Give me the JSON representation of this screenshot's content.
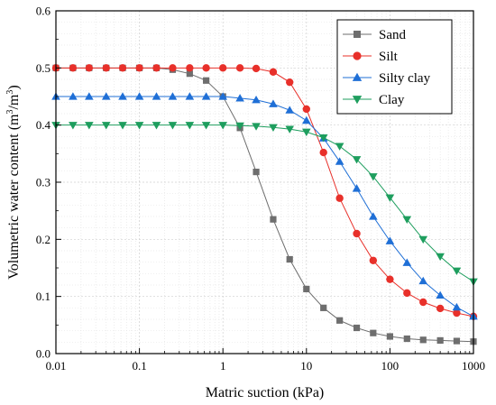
{
  "chart_data": {
    "type": "line",
    "xlabel": "Matric suction (kPa)",
    "ylabel_main": "Volumetric water content (m",
    "ylabel_sup1": "3",
    "ylabel_mid": "/m",
    "ylabel_sup2": "3",
    "ylabel_end": ")",
    "xscale": "log",
    "xlim": [
      0.01,
      1000
    ],
    "ylim": [
      0.0,
      0.6
    ],
    "xticks": [
      0.01,
      0.1,
      1,
      10,
      100,
      1000
    ],
    "xtick_labels": [
      "0.01",
      "0.1",
      "1",
      "10",
      "100",
      "1000"
    ],
    "yticks": [
      0.0,
      0.1,
      0.2,
      0.3,
      0.4,
      0.5,
      0.6
    ],
    "ytick_labels": [
      "0.0",
      "0.1",
      "0.2",
      "0.3",
      "0.4",
      "0.5",
      "0.6"
    ],
    "grid": true,
    "legend_position": "top-right",
    "series": [
      {
        "name": "Sand",
        "color": "#6e6e6e",
        "marker": "square",
        "x": [
          0.01,
          0.016,
          0.025,
          0.04,
          0.063,
          0.1,
          0.16,
          0.25,
          0.4,
          0.63,
          1,
          1.6,
          2.5,
          4,
          6.3,
          10,
          16,
          25,
          40,
          63,
          100,
          160,
          250,
          400,
          630,
          1000
        ],
        "y": [
          0.5,
          0.5,
          0.5,
          0.5,
          0.5,
          0.5,
          0.5,
          0.497,
          0.49,
          0.478,
          0.45,
          0.395,
          0.318,
          0.235,
          0.165,
          0.113,
          0.08,
          0.058,
          0.045,
          0.036,
          0.03,
          0.026,
          0.024,
          0.023,
          0.022,
          0.021
        ]
      },
      {
        "name": "Silt",
        "color": "#e8302a",
        "marker": "circle",
        "x": [
          0.01,
          0.016,
          0.025,
          0.04,
          0.063,
          0.1,
          0.16,
          0.25,
          0.4,
          0.63,
          1,
          1.6,
          2.5,
          4,
          6.3,
          10,
          16,
          25,
          40,
          63,
          100,
          160,
          250,
          400,
          630,
          1000
        ],
        "y": [
          0.5,
          0.5,
          0.5,
          0.5,
          0.5,
          0.5,
          0.5,
          0.5,
          0.5,
          0.5,
          0.5,
          0.5,
          0.499,
          0.493,
          0.475,
          0.428,
          0.352,
          0.272,
          0.21,
          0.163,
          0.13,
          0.106,
          0.09,
          0.079,
          0.071,
          0.065
        ]
      },
      {
        "name": "Silty clay",
        "color": "#1f6fd6",
        "marker": "triangle-up",
        "x": [
          0.01,
          0.016,
          0.025,
          0.04,
          0.063,
          0.1,
          0.16,
          0.25,
          0.4,
          0.63,
          1,
          1.6,
          2.5,
          4,
          6.3,
          10,
          16,
          25,
          40,
          63,
          100,
          160,
          250,
          400,
          630,
          1000
        ],
        "y": [
          0.45,
          0.45,
          0.45,
          0.45,
          0.45,
          0.45,
          0.45,
          0.45,
          0.45,
          0.45,
          0.45,
          0.447,
          0.444,
          0.437,
          0.426,
          0.408,
          0.377,
          0.336,
          0.289,
          0.24,
          0.197,
          0.159,
          0.127,
          0.102,
          0.081,
          0.065
        ]
      },
      {
        "name": "Clay",
        "color": "#1e9e5e",
        "marker": "triangle-down",
        "x": [
          0.01,
          0.016,
          0.025,
          0.04,
          0.063,
          0.1,
          0.16,
          0.25,
          0.4,
          0.63,
          1,
          1.6,
          2.5,
          4,
          6.3,
          10,
          16,
          25,
          40,
          63,
          100,
          160,
          250,
          400,
          630,
          1000
        ],
        "y": [
          0.4,
          0.4,
          0.4,
          0.4,
          0.4,
          0.4,
          0.4,
          0.4,
          0.4,
          0.4,
          0.4,
          0.399,
          0.398,
          0.396,
          0.393,
          0.388,
          0.378,
          0.363,
          0.34,
          0.31,
          0.273,
          0.235,
          0.2,
          0.17,
          0.145,
          0.126
        ]
      }
    ]
  }
}
